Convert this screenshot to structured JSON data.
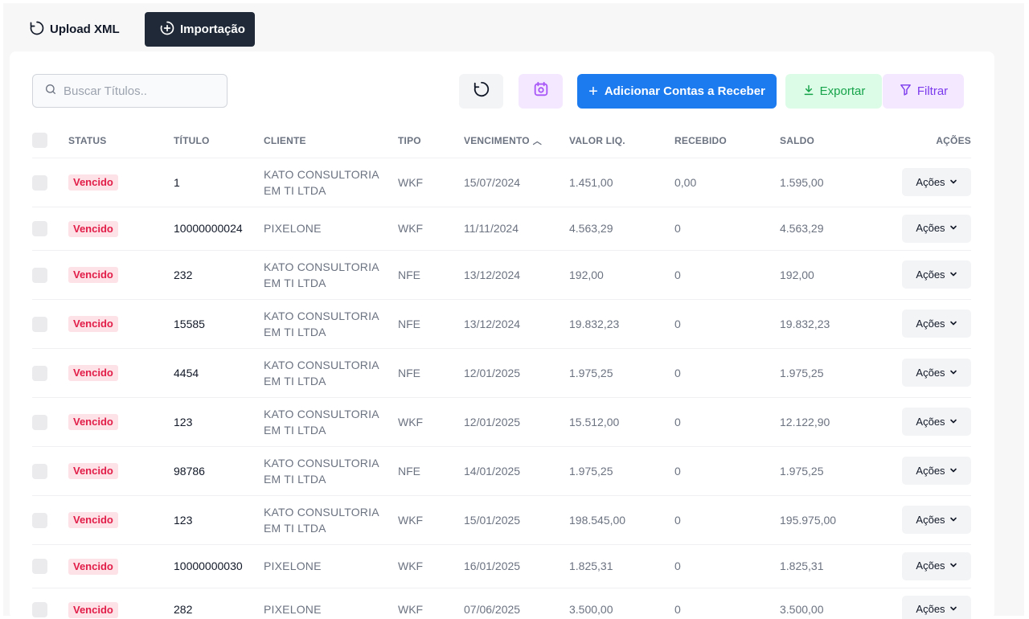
{
  "tabs": [
    {
      "label": "Upload XML",
      "active": false
    },
    {
      "label": "Importação",
      "active": true
    }
  ],
  "search": {
    "placeholder": "Buscar Títulos.."
  },
  "toolbar": {
    "add_label": "Adicionar Contas a Receber",
    "export_label": "Exportar",
    "filter_label": "Filtrar"
  },
  "table": {
    "headers": {
      "status": "STATUS",
      "titulo": "TÍTULO",
      "cliente": "CLIENTE",
      "tipo": "TIPO",
      "vencimento": "VENCIMENTO",
      "valor": "VALOR LIQ.",
      "recebido": "RECEBIDO",
      "saldo": "SALDO",
      "acoes": "AÇÕES"
    },
    "actions_label": "Ações",
    "rows": [
      {
        "status": "Vencido",
        "titulo": "1",
        "cliente": "KATO CONSULTORIA EM TI LTDA",
        "tipo": "WKF",
        "vencimento": "15/07/2024",
        "valor": "1.451,00",
        "recebido": "0,00",
        "saldo": "1.595,00"
      },
      {
        "status": "Vencido",
        "titulo": "10000000024",
        "cliente": "PIXELONE",
        "tipo": "WKF",
        "vencimento": "11/11/2024",
        "valor": "4.563,29",
        "recebido": "0",
        "saldo": "4.563,29"
      },
      {
        "status": "Vencido",
        "titulo": "232",
        "cliente": "KATO CONSULTORIA EM TI LTDA",
        "tipo": "NFE",
        "vencimento": "13/12/2024",
        "valor": "192,00",
        "recebido": "0",
        "saldo": "192,00"
      },
      {
        "status": "Vencido",
        "titulo": "15585",
        "cliente": "KATO CONSULTORIA EM TI LTDA",
        "tipo": "NFE",
        "vencimento": "13/12/2024",
        "valor": "19.832,23",
        "recebido": "0",
        "saldo": "19.832,23"
      },
      {
        "status": "Vencido",
        "titulo": "4454",
        "cliente": "KATO CONSULTORIA EM TI LTDA",
        "tipo": "NFE",
        "vencimento": "12/01/2025",
        "valor": "1.975,25",
        "recebido": "0",
        "saldo": "1.975,25"
      },
      {
        "status": "Vencido",
        "titulo": "123",
        "cliente": "KATO CONSULTORIA EM TI LTDA",
        "tipo": "WKF",
        "vencimento": "12/01/2025",
        "valor": "15.512,00",
        "recebido": "0",
        "saldo": "12.122,90"
      },
      {
        "status": "Vencido",
        "titulo": "98786",
        "cliente": "KATO CONSULTORIA EM TI LTDA",
        "tipo": "NFE",
        "vencimento": "14/01/2025",
        "valor": "1.975,25",
        "recebido": "0",
        "saldo": "1.975,25"
      },
      {
        "status": "Vencido",
        "titulo": "123",
        "cliente": "KATO CONSULTORIA EM TI LTDA",
        "tipo": "WKF",
        "vencimento": "15/01/2025",
        "valor": "198.545,00",
        "recebido": "0",
        "saldo": "195.975,00"
      },
      {
        "status": "Vencido",
        "titulo": "10000000030",
        "cliente": "PIXELONE",
        "tipo": "WKF",
        "vencimento": "16/01/2025",
        "valor": "1.825,31",
        "recebido": "0",
        "saldo": "1.825,31"
      },
      {
        "status": "Vencido",
        "titulo": "282",
        "cliente": "PIXELONE",
        "tipo": "WKF",
        "vencimento": "07/06/2025",
        "valor": "3.500,00",
        "recebido": "0",
        "saldo": "3.500,00"
      }
    ]
  }
}
